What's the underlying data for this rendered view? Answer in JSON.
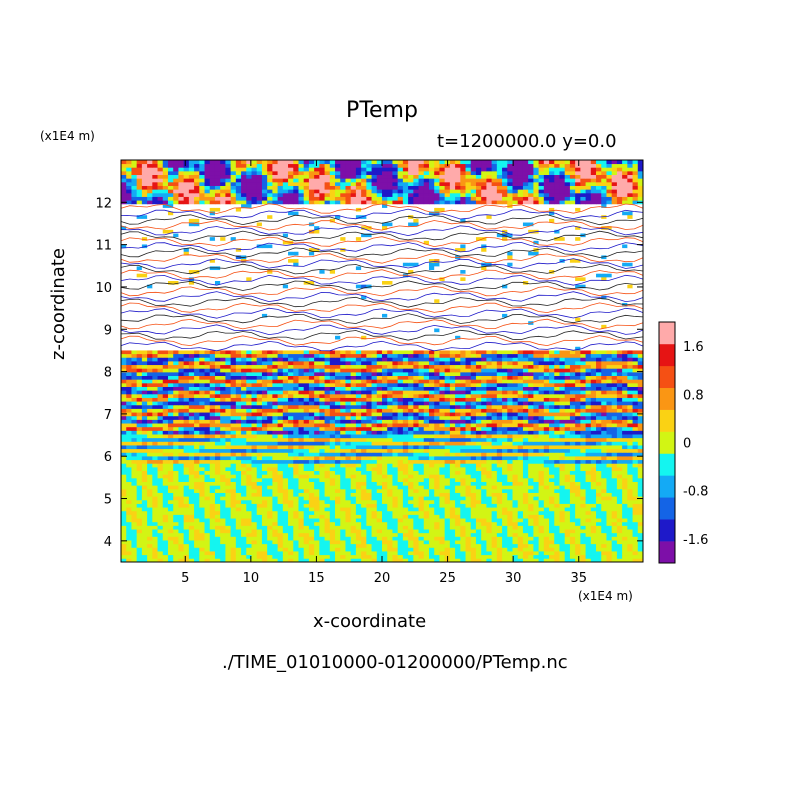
{
  "chart_data": {
    "type": "heatmap",
    "title": "PTemp",
    "subtitle": "t=1200000.0 y=0.0",
    "xlabel": "x-coordinate",
    "ylabel": "z-coordinate",
    "x_unit": "(x1E4 m)",
    "y_unit": "(x1E4 m)",
    "xlim": [
      0.1,
      39.9
    ],
    "ylim": [
      3.5,
      13.0
    ],
    "x_ticks": [
      5,
      10,
      15,
      20,
      25,
      30,
      35
    ],
    "y_ticks": [
      4,
      5,
      6,
      7,
      8,
      9,
      10,
      11,
      12
    ],
    "colorbar": {
      "levels": [
        -2.0,
        -1.6,
        -1.2,
        -0.8,
        -0.4,
        0,
        0.4,
        0.8,
        1.2,
        1.6,
        2.0
      ],
      "tick_labels": [
        "1.6",
        "0.8",
        "0",
        "-0.8",
        "-1.6"
      ],
      "tick_values": [
        1.6,
        0.8,
        0,
        -0.8,
        -1.6
      ],
      "colors": [
        "#7d0fa8",
        "#1e19c9",
        "#1464e6",
        "#14aaf5",
        "#14f5f0",
        "#d2f514",
        "#fad214",
        "#fa9614",
        "#f55014",
        "#e61414",
        "#ffaaaa"
      ]
    },
    "bands": [
      {
        "z": [
          12.0,
          13.0
        ],
        "pattern": "mixed red, white and blue cells, strong positive and negative anomalies"
      },
      {
        "z": [
          10.0,
          12.0
        ],
        "pattern": "mostly white (near zero) with thin blue and red contour lines"
      },
      {
        "z": [
          8.5,
          10.0
        ],
        "pattern": "white with thin horizontal layered lines"
      },
      {
        "z": [
          6.5,
          8.5
        ],
        "pattern": "densely layered red, orange, blue and cyan stripes"
      },
      {
        "z": [
          5.8,
          6.5
        ],
        "pattern": "fine cyan, yellow and blue stripes"
      },
      {
        "z": [
          3.5,
          5.8
        ],
        "pattern": "cyan and yellow cells, values near 0"
      }
    ]
  },
  "footer": {
    "source": "./TIME_01010000-01200000/PTemp.nc"
  }
}
